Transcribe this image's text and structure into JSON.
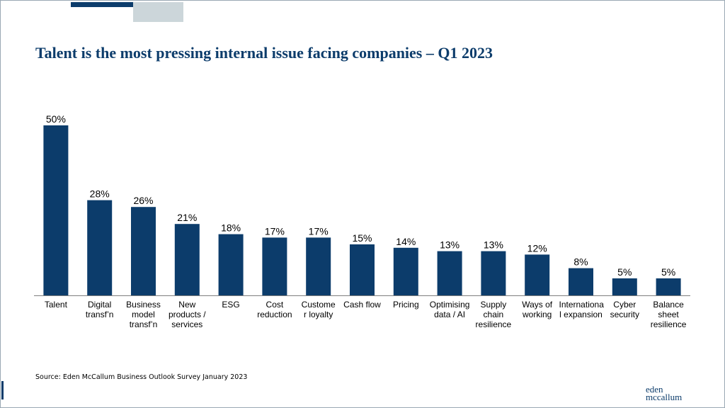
{
  "title": "Talent is the most pressing internal issue facing companies – Q1 2023",
  "source": "Source: Eden McCallum Business Outlook Survey January 2023",
  "logo": {
    "line1": "eden",
    "line2": "mccallum"
  },
  "colors": {
    "bar": "#0c3c6b",
    "title": "#0c3c6b",
    "axis": "#7f7f7f"
  },
  "chart_data": {
    "type": "bar",
    "title": "Talent is the most pressing internal issue facing companies – Q1 2023",
    "xlabel": "",
    "ylabel": "",
    "ylim": [
      0,
      50
    ],
    "grid": false,
    "legend": "none",
    "categories": [
      "Talent",
      "Digital transf’n",
      "Business model transf’n",
      "New products / services",
      "ESG",
      "Cost reduction",
      "Customer loyalty",
      "Cash flow",
      "Pricing",
      "Optimising data / AI",
      "Supply chain resilience",
      "Ways of working",
      "International expansion",
      "Cyber security",
      "Balance sheet resilience"
    ],
    "category_lines": [
      [
        "Talent"
      ],
      [
        "Digital",
        "transf’n"
      ],
      [
        "Business",
        "model",
        "transf’n"
      ],
      [
        "New",
        "products /",
        "services"
      ],
      [
        "ESG"
      ],
      [
        "Cost",
        "reduction"
      ],
      [
        "Custome",
        "r loyalty"
      ],
      [
        "Cash flow"
      ],
      [
        "Pricing"
      ],
      [
        "Optimising",
        "data / AI"
      ],
      [
        "Supply",
        "chain",
        "resilience"
      ],
      [
        "Ways of",
        "working"
      ],
      [
        "Internationa",
        "l expansion"
      ],
      [
        "Cyber",
        "security"
      ],
      [
        "Balance",
        "sheet",
        "resilience"
      ]
    ],
    "values": [
      50,
      28,
      26,
      21,
      18,
      17,
      17,
      15,
      14,
      13,
      13,
      12,
      8,
      5,
      5
    ],
    "value_labels": [
      "50%",
      "28%",
      "26%",
      "21%",
      "18%",
      "17%",
      "17%",
      "15%",
      "14%",
      "13%",
      "13%",
      "12%",
      "8%",
      "5%",
      "5%"
    ]
  }
}
